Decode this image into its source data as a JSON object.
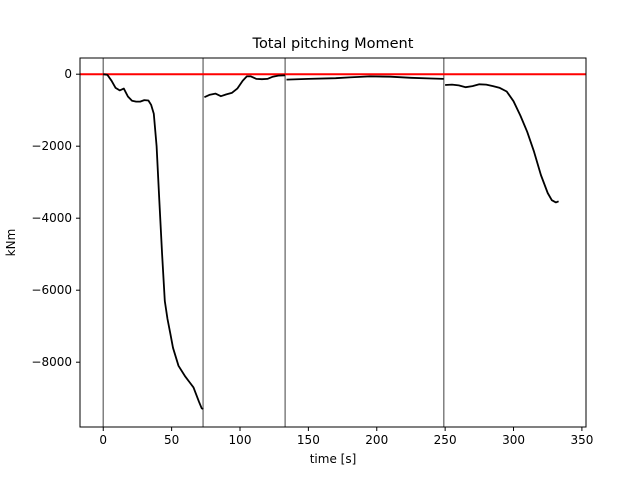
{
  "chart_data": {
    "type": "line",
    "title": "Total pitching Moment",
    "xlabel": "time [s]",
    "ylabel": "kNm",
    "xlim": [
      -17,
      353
    ],
    "ylim": [
      -9800,
      450
    ],
    "xticks": [
      0,
      50,
      100,
      150,
      200,
      250,
      300,
      350
    ],
    "yticks": [
      0,
      -2000,
      -4000,
      -6000,
      -8000
    ],
    "xtick_labels": [
      "0",
      "50",
      "100",
      "150",
      "200",
      "250",
      "300",
      "350"
    ],
    "ytick_labels": [
      "0",
      "−2000",
      "−4000",
      "−6000",
      "−8000"
    ],
    "grid": false,
    "colors": {
      "series": "#000000",
      "reference": "#ff0000",
      "phase_boundary": "#808080"
    },
    "reference_line": {
      "y": 0
    },
    "phase_boundaries": [
      0,
      73,
      133,
      249
    ],
    "series": [
      {
        "x": [
          0,
          3,
          6,
          9,
          12,
          15,
          18,
          21,
          24,
          27,
          30,
          33,
          35,
          37,
          39,
          41,
          43,
          45,
          47,
          49,
          51,
          55,
          60,
          63,
          66,
          70,
          72,
          73
        ],
        "y": [
          0,
          -20,
          -180,
          -380,
          -450,
          -400,
          -620,
          -740,
          -760,
          -760,
          -720,
          -730,
          -850,
          -1100,
          -2000,
          -3500,
          -5000,
          -6300,
          -6800,
          -7200,
          -7600,
          -8100,
          -8400,
          -8550,
          -8700,
          -9100,
          -9280,
          -9300
        ]
      },
      {
        "x": [
          74,
          78,
          82,
          86,
          90,
          94,
          98,
          102,
          105,
          108,
          112,
          116,
          120,
          124,
          128,
          133
        ],
        "y": [
          -640,
          -570,
          -540,
          -610,
          -560,
          -520,
          -400,
          -180,
          -60,
          -60,
          -130,
          -140,
          -130,
          -70,
          -40,
          -30
        ]
      },
      {
        "x": [
          134,
          150,
          170,
          180,
          195,
          210,
          225,
          240,
          249
        ],
        "y": [
          -150,
          -130,
          -110,
          -90,
          -60,
          -70,
          -100,
          -120,
          -130
        ]
      },
      {
        "x": [
          250,
          255,
          260,
          265,
          270,
          275,
          280,
          285,
          290,
          295,
          300,
          305,
          310,
          315,
          320,
          325,
          328,
          331,
          333
        ],
        "y": [
          -300,
          -290,
          -310,
          -360,
          -330,
          -280,
          -290,
          -330,
          -380,
          -480,
          -750,
          -1150,
          -1600,
          -2150,
          -2800,
          -3300,
          -3500,
          -3560,
          -3530
        ]
      }
    ]
  }
}
